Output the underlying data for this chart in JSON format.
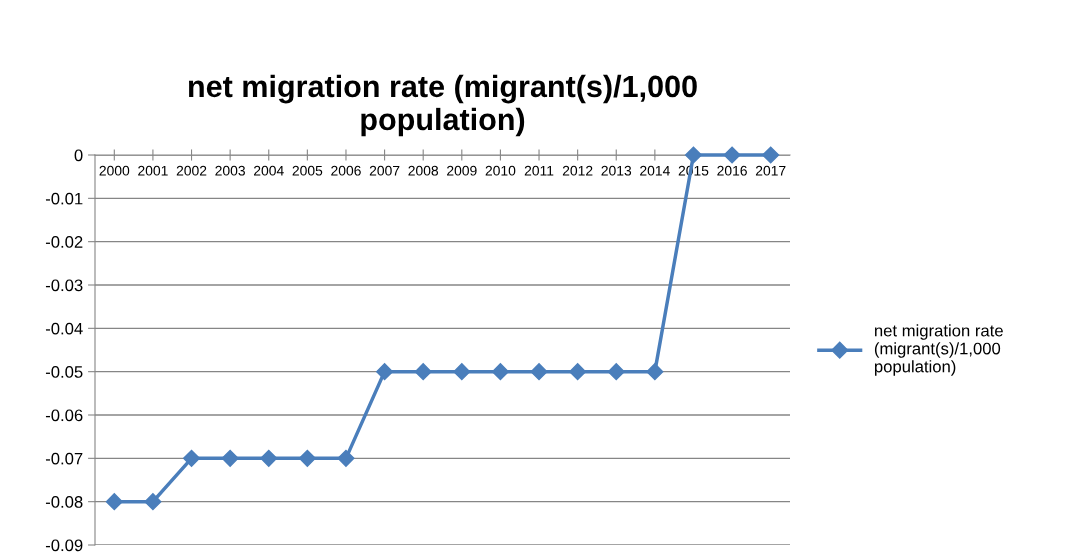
{
  "chart_data": {
    "type": "line",
    "title": "net migration rate (migrant(s)/1,000\npopulation)",
    "categories": [
      "2000",
      "2001",
      "2002",
      "2003",
      "2004",
      "2005",
      "2006",
      "2007",
      "2008",
      "2009",
      "2010",
      "2011",
      "2012",
      "2013",
      "2014",
      "2015",
      "2016",
      "2017"
    ],
    "series": [
      {
        "name": "net migration rate\n(migrant(s)/1,000\npopulation)",
        "color": "#4a7ebb",
        "values": [
          -0.08,
          -0.08,
          -0.07,
          -0.07,
          -0.07,
          -0.07,
          -0.07,
          -0.05,
          -0.05,
          -0.05,
          -0.05,
          -0.05,
          -0.05,
          -0.05,
          -0.05,
          0,
          0,
          0
        ]
      }
    ],
    "ylim": [
      -0.09,
      0
    ],
    "yticks": [
      0,
      -0.01,
      -0.02,
      -0.03,
      -0.04,
      -0.05,
      -0.06,
      -0.07,
      -0.08,
      -0.09
    ],
    "grid": "y",
    "legend": "right",
    "marker": "diamond",
    "line_style": "solid"
  }
}
